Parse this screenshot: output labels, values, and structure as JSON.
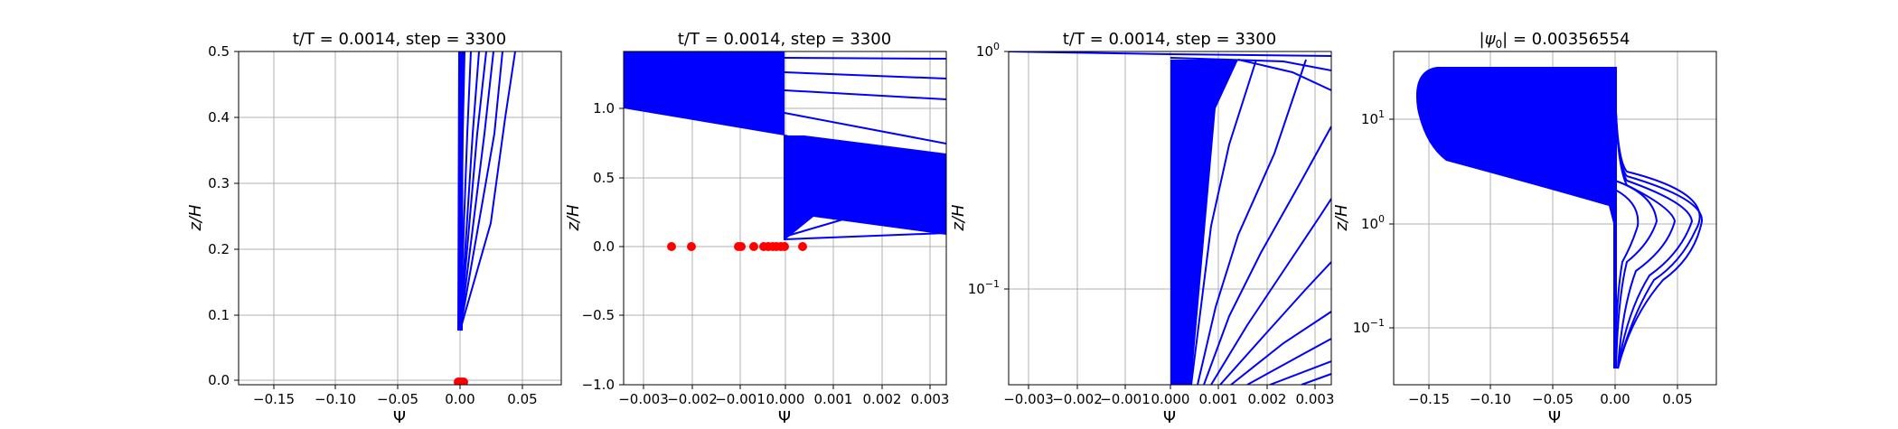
{
  "chart_data": [
    {
      "type": "line",
      "title": "t/T = 0.0014, step = 3300",
      "xlabel": "Ψ",
      "ylabel": "z/H",
      "xlim": [
        -0.18,
        0.08
      ],
      "ylim": [
        -0.005,
        0.5
      ],
      "yscale": "linear",
      "xticks": [
        -0.15,
        -0.1,
        -0.05,
        0.0,
        0.05
      ],
      "xtick_labels": [
        "−0.15",
        "−0.10",
        "−0.05",
        "0.00",
        "0.05"
      ],
      "yticks": [
        0.0,
        0.1,
        0.2,
        0.3,
        0.4,
        0.5
      ],
      "ytick_labels": [
        "0.0",
        "0.1",
        "0.2",
        "0.3",
        "0.4",
        "0.5"
      ],
      "grid": true,
      "line_color": "#0000ff",
      "marker_color": "#ff0000",
      "series": [
        {
          "x": [
            0.0,
            0.003,
            0.004
          ],
          "y": [
            0.04,
            0.3,
            0.5
          ]
        },
        {
          "x": [
            0.0,
            0.006,
            0.009
          ],
          "y": [
            0.04,
            0.3,
            0.5
          ]
        },
        {
          "x": [
            0.0,
            0.01,
            0.015
          ],
          "y": [
            0.04,
            0.3,
            0.5
          ]
        },
        {
          "x": [
            0.0,
            0.014,
            0.021
          ],
          "y": [
            0.04,
            0.3,
            0.5
          ]
        },
        {
          "x": [
            0.0,
            0.02,
            0.027
          ],
          "y": [
            0.04,
            0.3,
            0.5
          ]
        },
        {
          "x": [
            0.0,
            0.028,
            0.034
          ],
          "y": [
            0.04,
            0.3,
            0.5
          ]
        },
        {
          "x": [
            0.0,
            0.025,
            0.036,
            0.044
          ],
          "y": [
            0.04,
            0.24,
            0.4,
            0.5
          ]
        }
      ],
      "markers": {
        "x": [
          -0.002,
          -0.001,
          0.0,
          0.001,
          0.002
        ],
        "y": [
          0.0,
          0.0,
          0.0,
          0.0,
          0.0
        ]
      }
    },
    {
      "type": "line",
      "title": "t/T = 0.0014, step = 3300",
      "xlabel": "Ψ",
      "ylabel": "z/H",
      "xlim": [
        -0.0033,
        0.0033
      ],
      "ylim": [
        -1.0,
        1.42
      ],
      "yscale": "linear",
      "xticks": [
        -0.003,
        -0.002,
        -0.001,
        0.0,
        0.001,
        0.002,
        0.003
      ],
      "xtick_labels": [
        "−0.003",
        "−0.002",
        "−0.001",
        "0.000",
        "0.001",
        "0.002",
        "0.003"
      ],
      "yticks": [
        -1.0,
        -0.5,
        0.0,
        0.5,
        1.0
      ],
      "ytick_labels": [
        "−1.0",
        "−0.5",
        "0.0",
        "0.5",
        "1.0"
      ],
      "grid": true,
      "line_color": "#0000ff",
      "marker_color": "#ff0000",
      "series": [
        {
          "x": [
            -0.0033,
            0.0,
            0.0033
          ],
          "y": [
            1.0,
            1.08,
            0.78
          ]
        },
        {
          "x": [
            -0.0033,
            0.0,
            0.0033
          ],
          "y": [
            1.14,
            1.18,
            1.08
          ]
        },
        {
          "x": [
            -0.0033,
            0.0,
            0.0033
          ],
          "y": [
            1.28,
            1.3,
            1.25
          ]
        },
        {
          "x": [
            0.0,
            0.001,
            0.0033
          ],
          "y": [
            0.05,
            0.1,
            0.15
          ]
        },
        {
          "x": [
            0.0,
            0.0012,
            0.0033
          ],
          "y": [
            0.3,
            0.5,
            0.42
          ]
        },
        {
          "x": [
            0.0,
            0.0008,
            0.0033
          ],
          "y": [
            0.7,
            0.9,
            0.72
          ]
        }
      ],
      "markers": {
        "x": [
          -0.00235,
          -0.00195,
          -0.00095,
          -0.00065,
          -0.00045,
          -0.00035,
          -0.00025,
          -0.00015,
          -8e-05,
          -3e-05,
          0.0,
          0.00035
        ],
        "y": [
          0,
          0,
          0,
          0,
          0,
          0,
          0,
          0,
          0,
          0,
          0,
          0
        ]
      }
    },
    {
      "type": "line",
      "title": "t/T = 0.0014, step = 3300",
      "xlabel": "Ψ",
      "ylabel": "z/H",
      "xlim": [
        -0.0033,
        0.0033
      ],
      "ylim": [
        0.035,
        1.0
      ],
      "yscale": "log",
      "xticks": [
        -0.003,
        -0.002,
        -0.001,
        0.0,
        0.001,
        0.002,
        0.003
      ],
      "xtick_labels": [
        "−0.003",
        "−0.002",
        "−0.001",
        "0.000",
        "0.001",
        "0.002",
        "0.003"
      ],
      "yticks": [
        0.1,
        1.0
      ],
      "ytick_labels": [
        "10^-1",
        "10^0"
      ],
      "grid": true,
      "line_color": "#0000ff",
      "series": [
        {
          "x": [
            0.0,
            0.0033
          ],
          "y": [
            0.035,
            0.08
          ]
        },
        {
          "x": [
            0.0,
            0.002,
            0.0033
          ],
          "y": [
            0.035,
            0.3,
            0.9
          ]
        },
        {
          "x": [
            -0.0033,
            0.0,
            0.0033
          ],
          "y": [
            1.0,
            0.98,
            0.95
          ]
        }
      ]
    },
    {
      "type": "line",
      "title": "|ψ0| = 0.00356554",
      "title_main": "|ψ",
      "title_sub": "0",
      "title_rest": "| = 0.00356554",
      "xlabel": "Ψ",
      "ylabel": "z/H",
      "xlim": [
        -0.18,
        0.08
      ],
      "ylim": [
        0.035,
        45
      ],
      "yscale": "log",
      "xticks": [
        -0.15,
        -0.1,
        -0.05,
        0.0,
        0.05
      ],
      "xtick_labels": [
        "−0.15",
        "−0.10",
        "−0.05",
        "0.00",
        "0.05"
      ],
      "yticks": [
        0.1,
        1.0,
        10.0
      ],
      "ytick_labels": [
        "10^-1",
        "10^0",
        "10^1"
      ],
      "grid": true,
      "line_color": "#0000ff",
      "series": [
        {
          "x": [
            0.0,
            0.012,
            0.025,
            0.004,
            0.0
          ],
          "y": [
            0.04,
            0.4,
            1.3,
            4.0,
            30
          ]
        },
        {
          "x": [
            0.0,
            0.018,
            0.04,
            0.01,
            0.0
          ],
          "y": [
            0.04,
            0.4,
            1.3,
            4.0,
            30
          ]
        },
        {
          "x": [
            0.0,
            0.025,
            0.055,
            0.02,
            0.0
          ],
          "y": [
            0.04,
            0.4,
            1.4,
            4.0,
            30
          ]
        },
        {
          "x": [
            0.0,
            0.03,
            0.065,
            0.03,
            0.0
          ],
          "y": [
            0.04,
            0.4,
            1.5,
            4.0,
            30
          ]
        },
        {
          "x": [
            0.0,
            0.0,
            -0.17,
            -0.17,
            0.0
          ],
          "y": [
            0.9,
            2.0,
            10.0,
            30.0,
            30.0
          ]
        }
      ]
    }
  ]
}
